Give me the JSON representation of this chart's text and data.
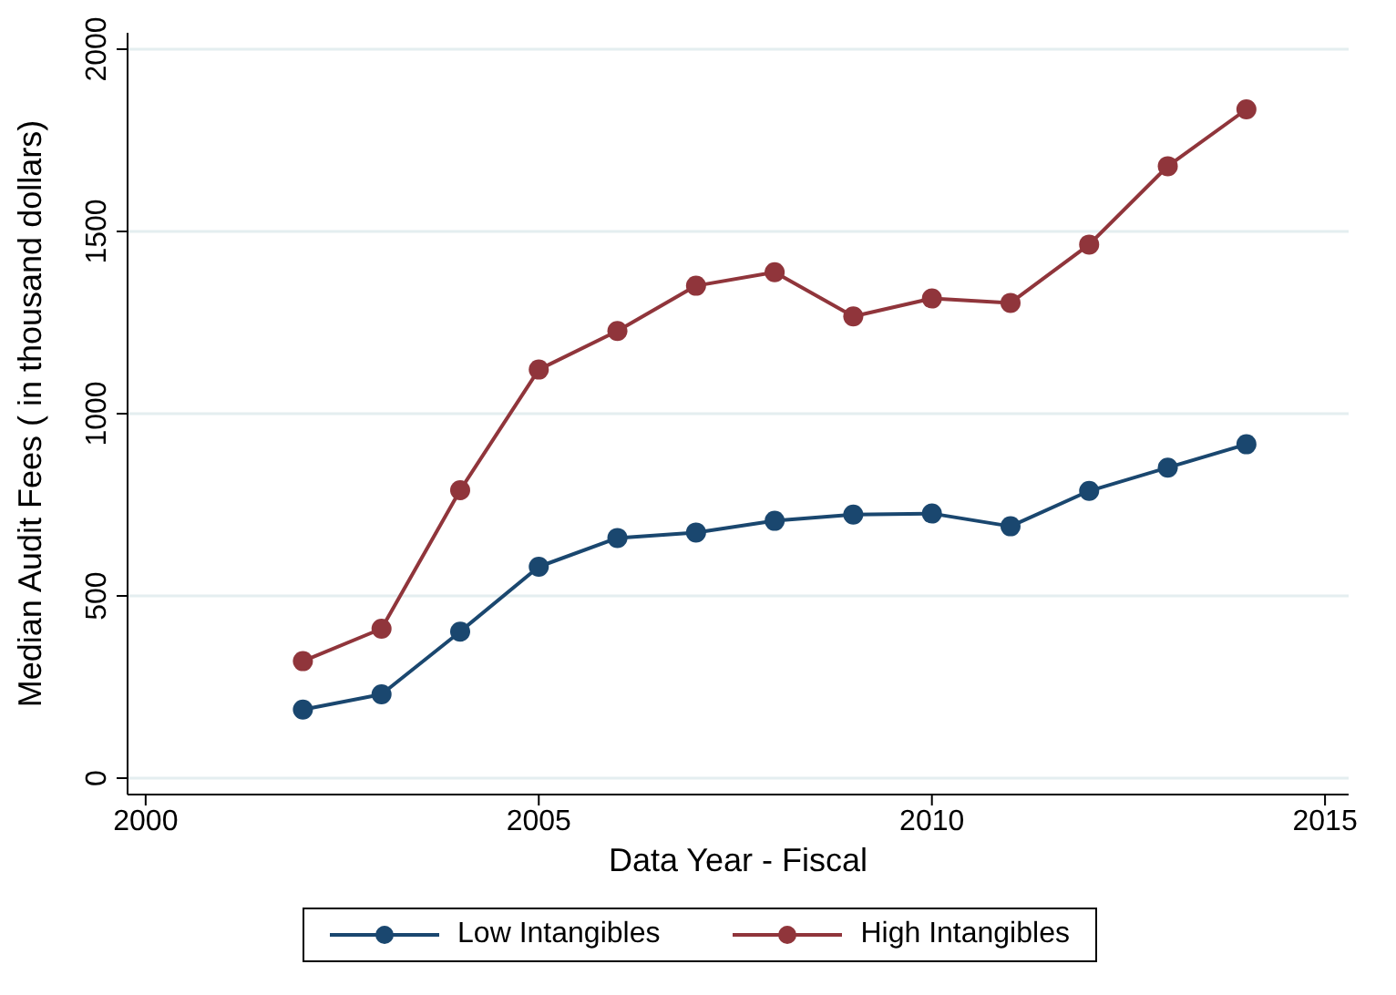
{
  "chart_data": {
    "type": "line",
    "xlabel": "Data Year - Fiscal",
    "ylabel": "Median Audit Fees ( in thousand dollars)",
    "x": [
      2002,
      2003,
      2004,
      2005,
      2006,
      2007,
      2008,
      2009,
      2010,
      2011,
      2012,
      2013,
      2014
    ],
    "series": [
      {
        "name": "Low Intangibles",
        "color": "#1a476f",
        "values": [
          188,
          230,
          402,
          580,
          659,
          674,
          706,
          723,
          726,
          691,
          788,
          852,
          916
        ]
      },
      {
        "name": "High Intangibles",
        "color": "#90353b",
        "values": [
          321,
          410,
          790,
          1121,
          1227,
          1351,
          1388,
          1267,
          1316,
          1304,
          1464,
          1679,
          1835
        ]
      }
    ],
    "xlim": [
      1999.77,
      2015.3
    ],
    "xticks": [
      2000,
      2005,
      2010,
      2015
    ],
    "ylim": [
      -45,
      2045
    ],
    "yticks": [
      0,
      500,
      1000,
      1500,
      2000
    ],
    "grid": "y",
    "legend": "bottom",
    "marker": "circle",
    "line_style": "solid"
  }
}
